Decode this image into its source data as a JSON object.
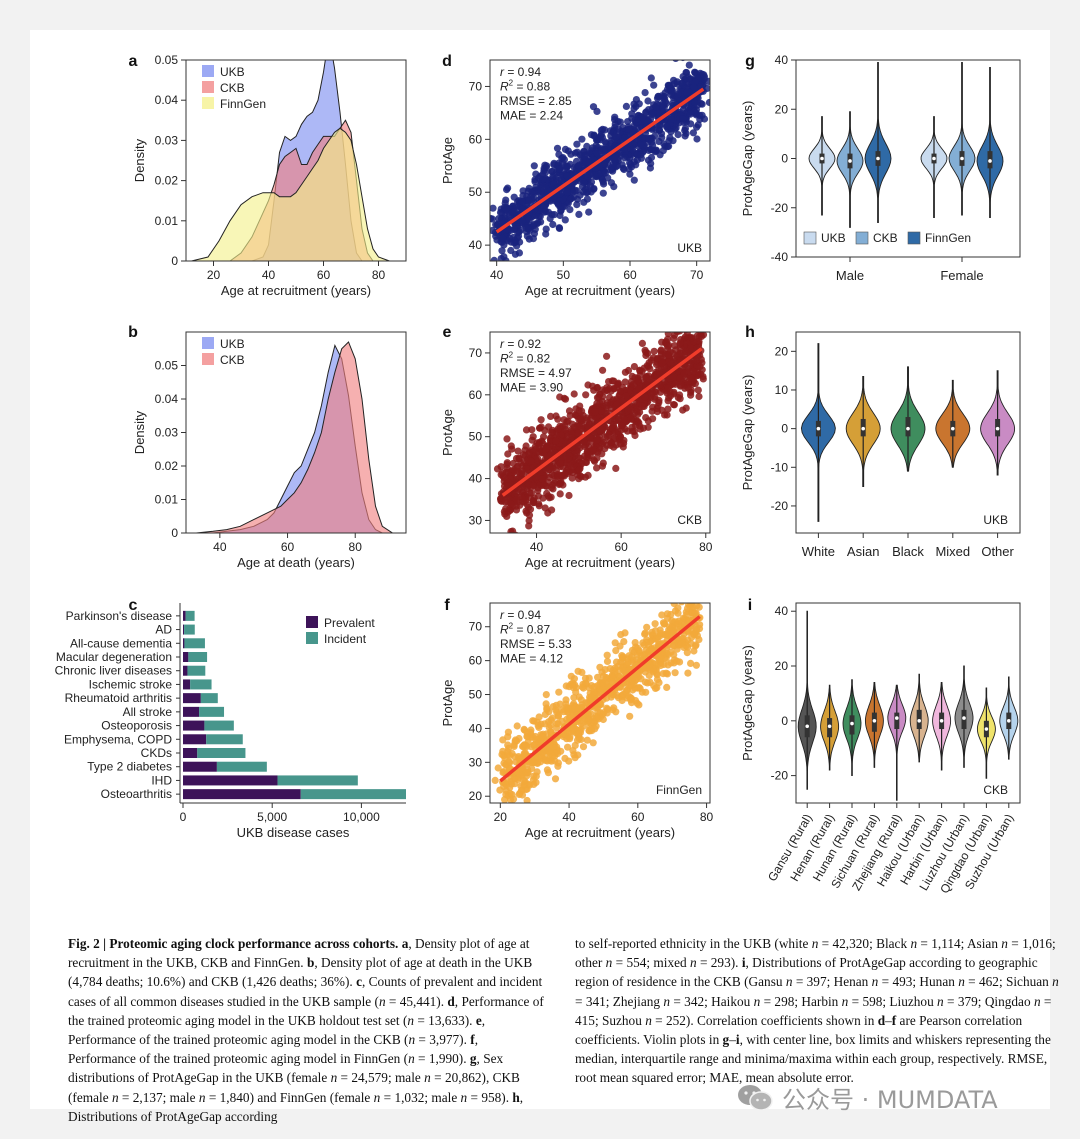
{
  "figure": {
    "panel_letters": [
      "a",
      "b",
      "c",
      "d",
      "e",
      "f",
      "g",
      "h",
      "i"
    ],
    "colors": {
      "UKB": "#7b8cf0",
      "CKB": "#f08080",
      "FinnGen": "#f4f08a",
      "overlap_ukb_ckb": "#b05585",
      "overlap_all": "#d9a860",
      "ukb_scatter": "#1a237e",
      "ckb_scatter": "#8b1a1a",
      "finngen_scatter": "#f2a93b",
      "fit_line": "#f03c2a",
      "prevalent": "#3d1359",
      "incident": "#47968c",
      "g_ukb": "#c9dbef",
      "g_ckb": "#83aed5",
      "g_finngen": "#2f6aa6",
      "h_white": "#2f6aa6",
      "h_asian": "#d59f37",
      "h_black": "#3f8d5e",
      "h_mixed": "#c9752f",
      "h_other": "#c98bc4",
      "i_gansu": "#555555",
      "i_henan": "#d59f37",
      "i_hunan": "#3f8d5e",
      "i_sichuan": "#c9752f",
      "i_zhejiang": "#c98bc4",
      "i_haikou": "#d8b38f",
      "i_harbin": "#f0b7dd",
      "i_liuzhou": "#8c8c8c",
      "i_qingdao": "#efe36b",
      "i_suzhou": "#b5d3ec"
    }
  },
  "chart_data": [
    {
      "panel": "a",
      "type": "area",
      "title": "",
      "xlabel": "Age at recruitment (years)",
      "ylabel": "Density",
      "xlim": [
        10,
        90
      ],
      "ylim": [
        0,
        0.05
      ],
      "xticks": [
        20,
        40,
        60,
        80
      ],
      "yticks": [
        0,
        0.01,
        0.02,
        0.03,
        0.04,
        0.05
      ],
      "xtick_labels": [
        "20",
        "40",
        "60",
        "80"
      ],
      "ytick_labels": [
        "0",
        "0.01",
        "0.02",
        "0.03",
        "0.04",
        "0.05"
      ],
      "legend": [
        "UKB",
        "CKB",
        "FinnGen"
      ],
      "legend_position": "top-left",
      "x": [
        12,
        18,
        22,
        26,
        30,
        34,
        38,
        40,
        42,
        44,
        46,
        48,
        50,
        52,
        54,
        56,
        58,
        60,
        62,
        64,
        66,
        68,
        70,
        72,
        74,
        76,
        78,
        80,
        84,
        88
      ],
      "series": [
        {
          "name": "UKB",
          "values": [
            0,
            0,
            0,
            0,
            0,
            0,
            0.001,
            0.004,
            0.015,
            0.027,
            0.031,
            0.03,
            0.031,
            0.034,
            0.036,
            0.037,
            0.04,
            0.047,
            0.056,
            0.048,
            0.037,
            0.024,
            0.01,
            0.002,
            0,
            0,
            0,
            0,
            0,
            0
          ]
        },
        {
          "name": "CKB",
          "values": [
            0,
            0,
            0,
            0,
            0.002,
            0.006,
            0.012,
            0.015,
            0.019,
            0.024,
            0.026,
            0.027,
            0.028,
            0.024,
            0.024,
            0.027,
            0.029,
            0.031,
            0.031,
            0.031,
            0.033,
            0.035,
            0.032,
            0.02,
            0.008,
            0.002,
            0,
            0,
            0,
            0
          ]
        },
        {
          "name": "FinnGen",
          "values": [
            0,
            0.001,
            0.005,
            0.01,
            0.014,
            0.016,
            0.017,
            0.017,
            0.017,
            0.016,
            0.016,
            0.016,
            0.017,
            0.019,
            0.021,
            0.023,
            0.025,
            0.028,
            0.03,
            0.032,
            0.033,
            0.032,
            0.03,
            0.024,
            0.016,
            0.008,
            0.003,
            0.001,
            0,
            0
          ]
        }
      ]
    },
    {
      "panel": "b",
      "type": "area",
      "title": "",
      "xlabel": "Age at death (years)",
      "ylabel": "Density",
      "xlim": [
        30,
        95
      ],
      "ylim": [
        0,
        0.06
      ],
      "xticks": [
        40,
        60,
        80
      ],
      "yticks": [
        0,
        0.01,
        0.02,
        0.03,
        0.04,
        0.05
      ],
      "xtick_labels": [
        "40",
        "60",
        "80"
      ],
      "ytick_labels": [
        "0",
        "0.01",
        "0.02",
        "0.03",
        "0.04",
        "0.05"
      ],
      "legend": [
        "UKB",
        "CKB"
      ],
      "legend_position": "top-left",
      "x": [
        33,
        38,
        42,
        46,
        50,
        54,
        56,
        58,
        60,
        62,
        64,
        66,
        68,
        70,
        72,
        74,
        76,
        78,
        80,
        82,
        84,
        86,
        88,
        91
      ],
      "series": [
        {
          "name": "UKB",
          "values": [
            0,
            0,
            0.0005,
            0.001,
            0.002,
            0.004,
            0.006,
            0.01,
            0.014,
            0.018,
            0.02,
            0.025,
            0.03,
            0.038,
            0.048,
            0.056,
            0.052,
            0.041,
            0.026,
            0.012,
            0.004,
            0.001,
            0,
            0
          ]
        },
        {
          "name": "CKB",
          "values": [
            0,
            0.0005,
            0.001,
            0.002,
            0.004,
            0.006,
            0.007,
            0.008,
            0.01,
            0.012,
            0.015,
            0.019,
            0.024,
            0.03,
            0.04,
            0.048,
            0.055,
            0.057,
            0.052,
            0.04,
            0.022,
            0.008,
            0.002,
            0
          ]
        }
      ]
    },
    {
      "panel": "c",
      "type": "bar",
      "orientation": "horizontal",
      "stacked": true,
      "title": "",
      "xlabel": "UKB disease cases",
      "ylabel": "",
      "xlim": [
        0,
        12500
      ],
      "xticks": [
        0,
        5000,
        10000
      ],
      "xtick_labels": [
        "0",
        "5,000",
        "10,000"
      ],
      "legend": [
        "Prevalent",
        "Incident"
      ],
      "legend_position": "top-right",
      "categories": [
        "Parkinson's disease",
        "AD",
        "All-cause dementia",
        "Macular degeneration",
        "Chronic liver diseases",
        "Ischemic stroke",
        "Rheumatoid arthritis",
        "All stroke",
        "Osteoporosis",
        "Emphysema, COPD",
        "CKDs",
        "Type 2 diabetes",
        "IHD",
        "Osteoarthritis"
      ],
      "series": [
        {
          "name": "Prevalent",
          "values": [
            150,
            60,
            80,
            300,
            250,
            400,
            1000,
            900,
            1200,
            1300,
            800,
            1900,
            5300,
            6600
          ]
        },
        {
          "name": "Incident",
          "values": [
            500,
            600,
            1150,
            1050,
            1000,
            1200,
            950,
            1400,
            1650,
            2050,
            2700,
            2800,
            4500,
            5900
          ]
        }
      ]
    },
    {
      "panel": "d",
      "type": "scatter",
      "title": "",
      "xlabel": "Age at recruitment (years)",
      "ylabel": "ProtAge",
      "xlim": [
        39,
        72
      ],
      "ylim": [
        37,
        75
      ],
      "xticks": [
        40,
        50,
        60,
        70
      ],
      "yticks": [
        40,
        50,
        60,
        70
      ],
      "xtick_labels": [
        "40",
        "50",
        "60",
        "70"
      ],
      "ytick_labels": [
        "40",
        "50",
        "60",
        "70"
      ],
      "cohort": "UKB",
      "stats": [
        "r = 0.94",
        "R2 = 0.88",
        "RMSE = 2.85",
        "MAE = 2.24"
      ],
      "fit_line": {
        "x": [
          40,
          71
        ],
        "y": [
          42.5,
          69.5
        ]
      },
      "x_range": [
        40,
        71
      ],
      "slope": 0.87,
      "intercept": 7.7,
      "noise_sd": 2.9,
      "n_points": 1200
    },
    {
      "panel": "e",
      "type": "scatter",
      "title": "",
      "xlabel": "Age at recruitment (years)",
      "ylabel": "ProtAge",
      "xlim": [
        29,
        81
      ],
      "ylim": [
        27,
        75
      ],
      "xticks": [
        40,
        60,
        80
      ],
      "yticks": [
        30,
        40,
        50,
        60,
        70
      ],
      "xtick_labels": [
        "40",
        "60",
        "80"
      ],
      "ytick_labels": [
        "30",
        "40",
        "50",
        "60",
        "70"
      ],
      "cohort": "CKB",
      "stats": [
        "r = 0.92",
        "R2 = 0.82",
        "RMSE = 4.97",
        "MAE = 3.90"
      ],
      "fit_line": {
        "x": [
          32,
          79
        ],
        "y": [
          36,
          71
        ]
      },
      "x_range": [
        32,
        79
      ],
      "slope": 0.745,
      "intercept": 12.2,
      "noise_sd": 4.5,
      "n_points": 1300
    },
    {
      "panel": "f",
      "type": "scatter",
      "title": "",
      "xlabel": "Age at recruitment (years)",
      "ylabel": "ProtAge",
      "xlim": [
        17,
        81
      ],
      "ylim": [
        18,
        77
      ],
      "xticks": [
        20,
        40,
        60,
        80
      ],
      "yticks": [
        20,
        30,
        40,
        50,
        60,
        70
      ],
      "xtick_labels": [
        "20",
        "40",
        "60",
        "80"
      ],
      "ytick_labels": [
        "20",
        "30",
        "40",
        "50",
        "60",
        "70"
      ],
      "cohort": "FinnGen",
      "stats": [
        "r = 0.94",
        "R2 = 0.87",
        "RMSE = 5.33",
        "MAE = 4.12"
      ],
      "fit_line": {
        "x": [
          20,
          78
        ],
        "y": [
          24.5,
          73
        ]
      },
      "x_range": [
        20,
        78
      ],
      "slope": 0.836,
      "intercept": 7.8,
      "noise_sd": 5.0,
      "n_points": 900
    },
    {
      "panel": "g",
      "type": "violin",
      "title": "",
      "xlabel": "",
      "ylabel": "ProtAgeGap (years)",
      "ylim": [
        -40,
        40
      ],
      "yticks": [
        -40,
        -20,
        0,
        20,
        40
      ],
      "ytick_labels": [
        "-40",
        "-20",
        "0",
        "20",
        "40"
      ],
      "groups": [
        "Male",
        "Female"
      ],
      "legend": [
        "UKB",
        "CKB",
        "FinnGen"
      ],
      "legend_position": "bottom-left",
      "violins": [
        {
          "group": "Male",
          "series": "UKB",
          "min": -23,
          "max": 17,
          "q1": -2,
          "median": 0,
          "q3": 2,
          "sd": 4
        },
        {
          "group": "Male",
          "series": "CKB",
          "min": -28,
          "max": 19,
          "q1": -4,
          "median": -1,
          "q3": 2,
          "sd": 5
        },
        {
          "group": "Male",
          "series": "FinnGen",
          "min": -26,
          "max": 39,
          "q1": -3,
          "median": 0,
          "q3": 3,
          "sd": 6
        },
        {
          "group": "Female",
          "series": "UKB",
          "min": -24,
          "max": 17,
          "q1": -2,
          "median": 0,
          "q3": 2,
          "sd": 4
        },
        {
          "group": "Female",
          "series": "CKB",
          "min": -23,
          "max": 39,
          "q1": -3,
          "median": 0,
          "q3": 3,
          "sd": 5
        },
        {
          "group": "Female",
          "series": "FinnGen",
          "min": -24,
          "max": 37,
          "q1": -4,
          "median": -1,
          "q3": 3,
          "sd": 6
        }
      ]
    },
    {
      "panel": "h",
      "type": "violin",
      "title": "",
      "xlabel": "",
      "ylabel": "ProtAgeGap (years)",
      "ylim": [
        -27,
        25
      ],
      "yticks": [
        -20,
        -10,
        0,
        10,
        20
      ],
      "ytick_labels": [
        "-20",
        "-10",
        "0",
        "10",
        "20"
      ],
      "cohort": "UKB",
      "categories": [
        "White",
        "Asian",
        "Black",
        "Mixed",
        "Other"
      ],
      "violins": [
        {
          "name": "White",
          "min": -24,
          "max": 22,
          "q1": -2,
          "median": 0,
          "q3": 2,
          "sd": 3.5
        },
        {
          "name": "Asian",
          "min": -15,
          "max": 13.5,
          "q1": -2,
          "median": 0,
          "q3": 2.5,
          "sd": 4
        },
        {
          "name": "Black",
          "min": -11,
          "max": 16,
          "q1": -2,
          "median": 0,
          "q3": 3,
          "sd": 4.2
        },
        {
          "name": "Mixed",
          "min": -10,
          "max": 12.5,
          "q1": -2,
          "median": 0,
          "q3": 2,
          "sd": 3.8
        },
        {
          "name": "Other",
          "min": -12,
          "max": 15,
          "q1": -2,
          "median": 0,
          "q3": 2.5,
          "sd": 4
        }
      ]
    },
    {
      "panel": "i",
      "type": "violin",
      "title": "",
      "xlabel": "",
      "ylabel": "ProtAgeGap (years)",
      "ylim": [
        -30,
        43
      ],
      "yticks": [
        -20,
        0,
        20,
        40
      ],
      "ytick_labels": [
        "-20",
        "0",
        "20",
        "40"
      ],
      "cohort": "CKB",
      "categories": [
        "Gansu (Rural)",
        "Henan (Rural)",
        "Hunan (Rural)",
        "Sichuan (Rural)",
        "Zhejiang (Rural)",
        "Haikou (Urban)",
        "Harbin (Urban)",
        "Liuzhou (Urban)",
        "Qingdao (Urban)",
        "Suzhou (Urban)"
      ],
      "violins": [
        {
          "name": "Gansu (Rural)",
          "min": -25,
          "max": 40,
          "q1": -6,
          "median": -2,
          "q3": 2,
          "sd": 6
        },
        {
          "name": "Henan (Rural)",
          "min": -18,
          "max": 13,
          "q1": -6,
          "median": -2,
          "q3": 1,
          "sd": 5.5
        },
        {
          "name": "Hunan (Rural)",
          "min": -20,
          "max": 15,
          "q1": -5,
          "median": -1,
          "q3": 2,
          "sd": 5.5
        },
        {
          "name": "Sichuan (Rural)",
          "min": -17,
          "max": 14,
          "q1": -4,
          "median": 0,
          "q3": 3,
          "sd": 5.5
        },
        {
          "name": "Zhejiang (Rural)",
          "min": -29,
          "max": 13,
          "q1": -3,
          "median": 1,
          "q3": 3,
          "sd": 5
        },
        {
          "name": "Haikou (Urban)",
          "min": -15,
          "max": 17,
          "q1": -3,
          "median": 0,
          "q3": 4,
          "sd": 5.5
        },
        {
          "name": "Harbin (Urban)",
          "min": -18,
          "max": 14,
          "q1": -3,
          "median": 0,
          "q3": 3,
          "sd": 5.5
        },
        {
          "name": "Liuzhou (Urban)",
          "min": -17,
          "max": 20,
          "q1": -3,
          "median": 1,
          "q3": 4,
          "sd": 5.5
        },
        {
          "name": "Qingdao (Urban)",
          "min": -21,
          "max": 12,
          "q1": -6,
          "median": -3,
          "q3": 0,
          "sd": 4.5
        },
        {
          "name": "Suzhou (Urban)",
          "min": -14,
          "max": 16,
          "q1": -3,
          "median": 0,
          "q3": 3,
          "sd": 5
        }
      ]
    }
  ],
  "caption": {
    "fig_label": "Fig. 2 | Proteomic aging clock performance across cohorts.",
    "left_html": " <b>a</b>, Density plot of age at recruitment in the UKB, CKB and FinnGen. <b>b</b>, Density plot of age at death in the UKB (4,784 deaths; 10.6%) and CKB (1,426 deaths; 36%). <b>c</b>, Counts of prevalent and incident cases of all common diseases studied in the UKB sample (<i>n</i> = 45,441). <b>d</b>, Performance of the trained proteomic aging model in the UKB holdout test set (<i>n</i> = 13,633). <b>e</b>, Performance of the trained proteomic aging model in the CKB (<i>n</i> = 3,977). <b>f</b>, Performance of the trained proteomic aging model in FinnGen (<i>n</i> = 1,990). <b>g</b>, Sex distributions of ProtAgeGap in the UKB (female <i>n</i> = 24,579; male <i>n</i> = 20,862), CKB (female <i>n</i> = 2,137; male <i>n</i> = 1,840) and FinnGen (female <i>n</i> = 1,032; male <i>n</i> = 958). <b>h</b>, Distributions of ProtAgeGap according",
    "right_html": "to self-reported ethnicity in the UKB (white <i>n</i> = 42,320; Black <i>n</i> = 1,114; Asian <i>n</i> = 1,016; other <i>n</i> = 554; mixed <i>n</i> = 293). <b>i</b>, Distributions of ProtAgeGap according to geographic region of residence in the CKB (Gansu <i>n</i> = 397; Henan <i>n</i> = 493; Hunan <i>n</i> = 462; Sichuan <i>n</i> = 341; Zhejiang <i>n</i> = 342; Haikou <i>n</i> = 298; Harbin <i>n</i> = 598; Liuzhou <i>n</i> = 379; Qingdao <i>n</i> = 415; Suzhou <i>n</i> = 252). Correlation coefficients shown in <b>d</b>–<b>f</b> are Pearson correlation coefficients. Violin plots in <b>g</b>–<b>i</b>, with center line, box limits and whiskers representing the median, interquartile range and minima/maxima within each group, respectively. RMSE, root mean squared error; MAE, mean absolute error."
  },
  "watermark": {
    "text": "公众号 · MUMDATA",
    "icon": "wechat-icon"
  }
}
